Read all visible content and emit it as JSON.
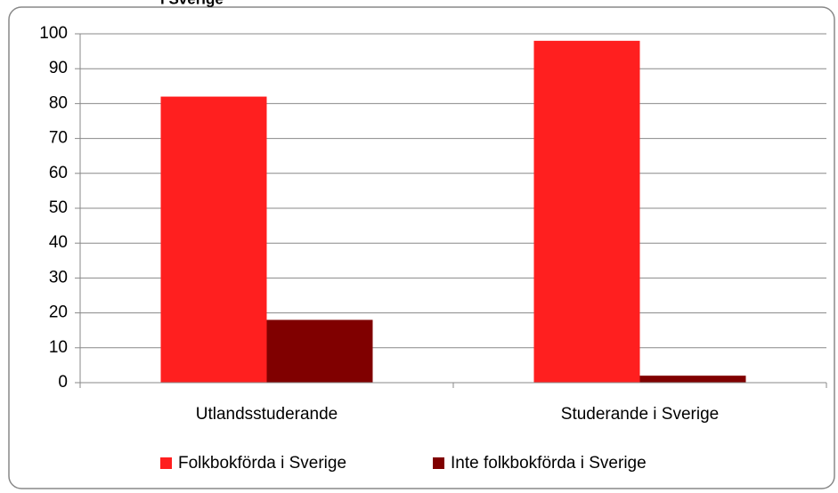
{
  "chart_data": {
    "type": "bar",
    "title": "i Sverige",
    "categories": [
      "Utlandsstuderande",
      "Studerande i Sverige"
    ],
    "series": [
      {
        "name": "Folkbokförda i Sverige",
        "color": "#ff1f1f",
        "values": [
          82,
          98
        ]
      },
      {
        "name": "Inte folkbokförda i Sverige",
        "color": "#800000",
        "values": [
          18,
          2
        ]
      }
    ],
    "ylim": [
      0,
      100
    ],
    "yticks": [
      0,
      10,
      20,
      30,
      40,
      50,
      60,
      70,
      80,
      90,
      100
    ],
    "grid": true,
    "legend": "bottom"
  }
}
